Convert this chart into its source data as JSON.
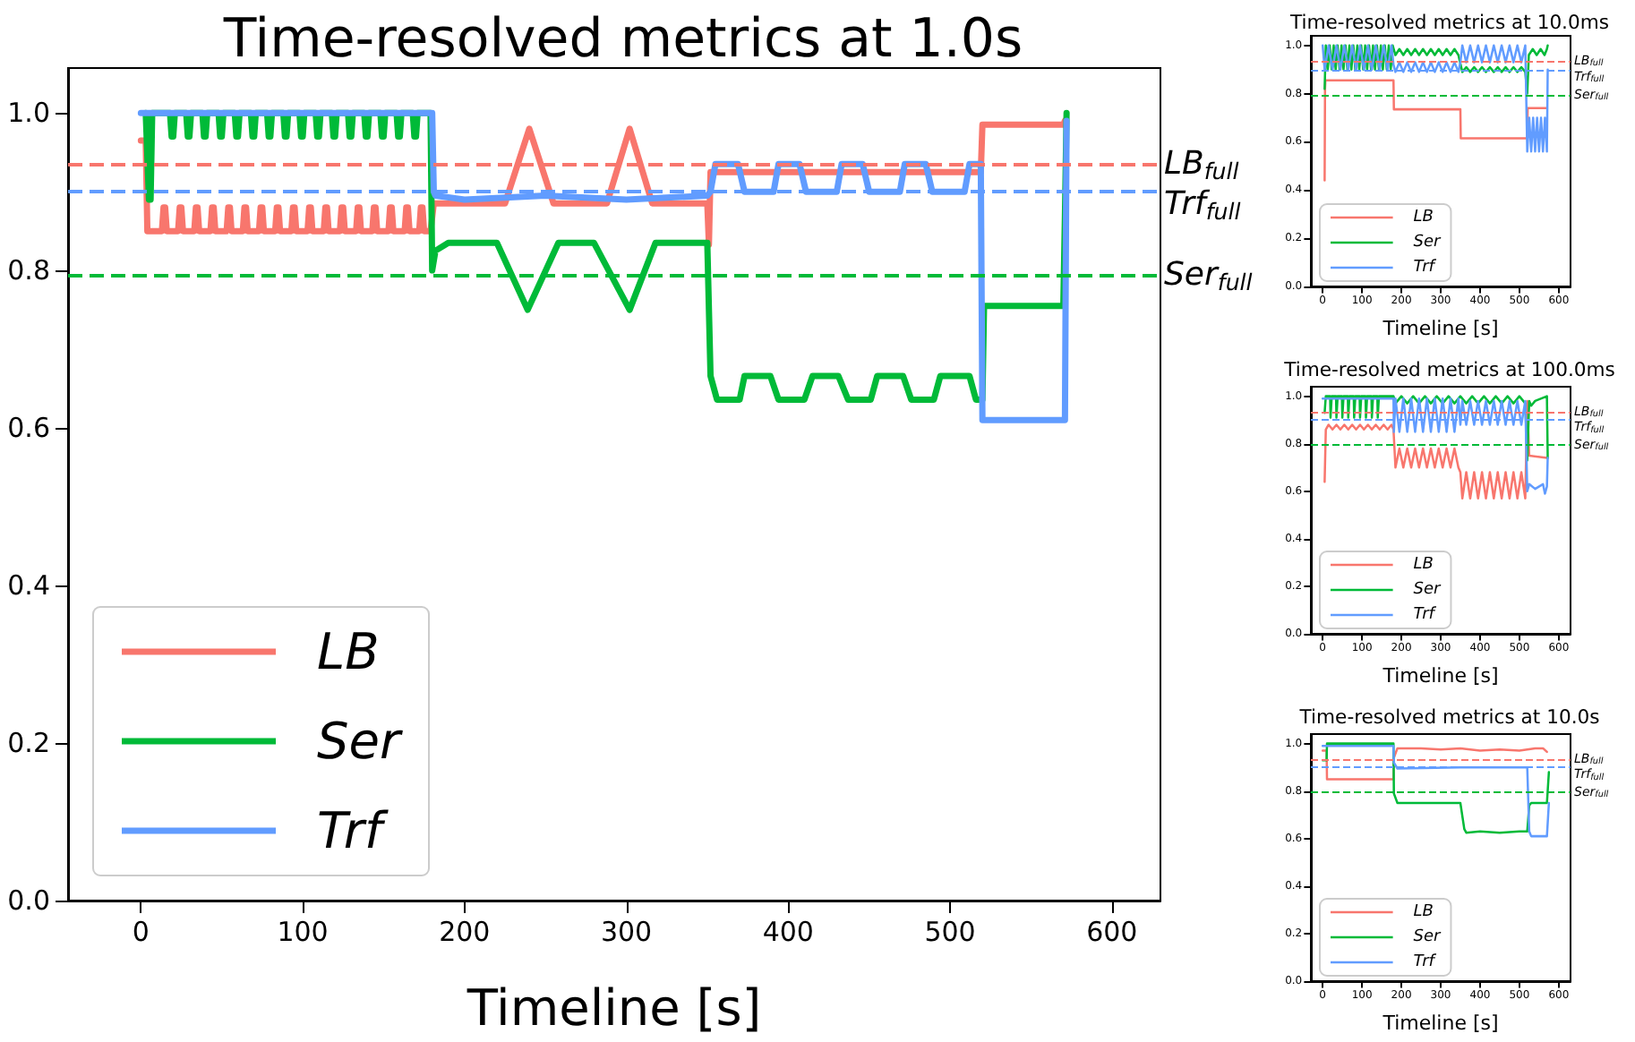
{
  "chart_data": [
    {
      "type": "line",
      "title": "Time-resolved metrics at 1.0s",
      "xlabel": "Timeline [s]",
      "xlim": [
        -45,
        630
      ],
      "ylim": [
        0,
        1.057
      ],
      "xticks": [
        0,
        100,
        200,
        300,
        400,
        500,
        600
      ],
      "yticks": [
        {
          "value": 0,
          "label": "0.0"
        },
        {
          "value": 0.2,
          "label": "0.2"
        },
        {
          "value": 0.4,
          "label": "0.4"
        },
        {
          "value": 0.6,
          "label": "0.6"
        },
        {
          "value": 0.8,
          "label": "0.8"
        },
        {
          "value": 1.0,
          "label": "1.0"
        }
      ],
      "legend": "bottom left",
      "series": [
        {
          "name": "LB",
          "color": "#f8766d",
          "x": [
            0,
            3,
            4,
            13,
            14,
            15,
            16,
            23,
            24,
            25,
            26,
            33,
            34,
            35,
            36,
            43,
            44,
            45,
            46,
            53,
            54,
            55,
            56,
            63,
            64,
            65,
            66,
            73,
            74,
            75,
            76,
            83,
            84,
            85,
            86,
            93,
            94,
            95,
            96,
            103,
            104,
            105,
            106,
            113,
            114,
            115,
            116,
            123,
            124,
            125,
            126,
            133,
            134,
            135,
            136,
            143,
            144,
            145,
            146,
            153,
            154,
            155,
            156,
            163,
            164,
            165,
            166,
            172,
            173,
            174,
            175,
            179,
            181,
            225,
            240,
            255,
            288,
            302,
            316,
            350,
            351,
            352,
            400,
            450,
            519,
            520,
            570,
            571
          ],
          "values": [
            0.965,
            0.965,
            0.85,
            0.85,
            0.88,
            0.88,
            0.85,
            0.85,
            0.88,
            0.88,
            0.85,
            0.85,
            0.88,
            0.88,
            0.85,
            0.85,
            0.88,
            0.88,
            0.85,
            0.85,
            0.88,
            0.88,
            0.85,
            0.85,
            0.88,
            0.88,
            0.85,
            0.85,
            0.88,
            0.88,
            0.85,
            0.85,
            0.88,
            0.88,
            0.85,
            0.85,
            0.88,
            0.88,
            0.85,
            0.85,
            0.88,
            0.88,
            0.85,
            0.85,
            0.88,
            0.88,
            0.85,
            0.85,
            0.88,
            0.88,
            0.85,
            0.85,
            0.88,
            0.88,
            0.85,
            0.85,
            0.88,
            0.88,
            0.85,
            0.85,
            0.88,
            0.88,
            0.85,
            0.85,
            0.88,
            0.88,
            0.85,
            0.85,
            0.88,
            0.88,
            0.85,
            0.85,
            0.885,
            0.885,
            0.98,
            0.885,
            0.885,
            0.98,
            0.885,
            0.885,
            0.833,
            0.925,
            0.925,
            0.925,
            0.925,
            0.985,
            0.985,
            0.99
          ]
        },
        {
          "name": "Ser",
          "color": "#00ba38",
          "x": [
            3,
            5,
            6,
            7,
            18,
            19,
            20,
            21,
            28,
            29,
            30,
            31,
            38,
            39,
            40,
            41,
            48,
            49,
            50,
            51,
            58,
            59,
            60,
            61,
            68,
            69,
            70,
            71,
            78,
            79,
            80,
            81,
            88,
            89,
            90,
            91,
            98,
            99,
            100,
            101,
            108,
            109,
            110,
            111,
            118,
            119,
            120,
            121,
            128,
            129,
            130,
            131,
            138,
            139,
            140,
            141,
            148,
            149,
            150,
            151,
            158,
            159,
            160,
            161,
            168,
            169,
            170,
            171,
            179,
            180,
            182,
            190,
            220,
            239,
            258,
            280,
            302,
            318,
            350,
            352,
            356,
            370,
            373,
            389,
            394,
            410,
            415,
            431,
            437,
            451,
            455,
            471,
            476,
            490,
            494,
            512,
            516,
            520,
            521,
            570,
            571,
            572
          ],
          "values": [
            1.0,
            0.89,
            0.89,
            1.0,
            1.0,
            0.97,
            0.97,
            1.0,
            1.0,
            0.97,
            0.97,
            1.0,
            1.0,
            0.97,
            0.97,
            1.0,
            1.0,
            0.97,
            0.97,
            1.0,
            1.0,
            0.97,
            0.97,
            1.0,
            1.0,
            0.97,
            0.97,
            1.0,
            1.0,
            0.97,
            0.97,
            1.0,
            1.0,
            0.97,
            0.97,
            1.0,
            1.0,
            0.97,
            0.97,
            1.0,
            1.0,
            0.97,
            0.97,
            1.0,
            1.0,
            0.97,
            0.97,
            1.0,
            1.0,
            0.97,
            0.97,
            1.0,
            1.0,
            0.97,
            0.97,
            1.0,
            1.0,
            0.97,
            0.97,
            1.0,
            1.0,
            0.97,
            0.97,
            1.0,
            1.0,
            0.97,
            0.97,
            1.0,
            1.0,
            0.8,
            0.825,
            0.835,
            0.835,
            0.75,
            0.835,
            0.835,
            0.75,
            0.835,
            0.835,
            0.666,
            0.636,
            0.636,
            0.666,
            0.666,
            0.636,
            0.636,
            0.666,
            0.666,
            0.636,
            0.636,
            0.666,
            0.666,
            0.636,
            0.636,
            0.666,
            0.666,
            0.636,
            0.636,
            0.755,
            0.755,
            0.87,
            1.0
          ]
        },
        {
          "name": "Trf",
          "color": "#619cff",
          "x": [
            0,
            180,
            181,
            182,
            200,
            250,
            300,
            350,
            352,
            355,
            369,
            373,
            391,
            394,
            407,
            411,
            430,
            433,
            446,
            450,
            469,
            472,
            485,
            489,
            509,
            512,
            519,
            520,
            571,
            572
          ],
          "values": [
            1.0,
            1.0,
            0.9,
            0.895,
            0.89,
            0.895,
            0.89,
            0.895,
            0.9,
            0.935,
            0.935,
            0.9,
            0.9,
            0.935,
            0.935,
            0.9,
            0.9,
            0.935,
            0.935,
            0.9,
            0.9,
            0.935,
            0.935,
            0.9,
            0.9,
            0.935,
            0.935,
            0.61,
            0.61,
            0.99
          ]
        }
      ],
      "ref_lines": [
        {
          "axis": "y",
          "value": 0.935,
          "label": "LB$_{full}$",
          "color": "#f8766d",
          "line_style": "dashed"
        },
        {
          "axis": "y",
          "value": 0.9,
          "label": "Trf$_{full}$",
          "color": "#619cff",
          "line_style": "dashed"
        },
        {
          "axis": "y",
          "value": 0.795,
          "label": "Ser$_{full}$",
          "color": "#00ba38",
          "line_style": "dashed"
        }
      ]
    },
    {
      "type": "line",
      "title": "Time-resolved metrics at 10.0ms",
      "xlabel": "Timeline [s]",
      "xlim": [
        -30,
        630
      ],
      "ylim": [
        0,
        1.04
      ],
      "xticks": [
        0,
        100,
        200,
        300,
        400,
        500,
        600
      ],
      "yticks": [
        {
          "value": 0,
          "label": "0.0"
        },
        {
          "value": 0.2,
          "label": "0.2"
        },
        {
          "value": 0.4,
          "label": "0.4"
        },
        {
          "value": 0.6,
          "label": "0.6"
        },
        {
          "value": 0.8,
          "label": "0.8"
        },
        {
          "value": 1.0,
          "label": "1.0"
        }
      ],
      "legend": "bottom left",
      "series": [
        {
          "name": "LB",
          "color": "#f8766d",
          "x": [
            5,
            6,
            7,
            180,
            181,
            350,
            351,
            520,
            521,
            570
          ],
          "values": [
            0.44,
            0.82,
            0.855,
            0.855,
            0.735,
            0.735,
            0.615,
            0.615,
            0.74,
            0.74
          ]
        },
        {
          "name": "Ser",
          "color": "#00ba38",
          "x": [
            5,
            8,
            13,
            18,
            23,
            28,
            33,
            38,
            43,
            48,
            53,
            58,
            63,
            68,
            73,
            78,
            83,
            88,
            93,
            98,
            103,
            108,
            113,
            118,
            123,
            128,
            133,
            138,
            143,
            148,
            153,
            158,
            163,
            168,
            173,
            178,
            185,
            195,
            205,
            215,
            225,
            235,
            245,
            255,
            265,
            275,
            285,
            295,
            305,
            315,
            325,
            335,
            345,
            355,
            365,
            375,
            385,
            395,
            405,
            415,
            425,
            435,
            445,
            455,
            465,
            475,
            485,
            495,
            505,
            515,
            520,
            524,
            534,
            544,
            554,
            564,
            570,
            572
          ],
          "values": [
            0.82,
            1.0,
            0.9,
            1.0,
            0.9,
            1.0,
            0.9,
            1.0,
            0.9,
            1.0,
            0.9,
            1.0,
            0.9,
            1.0,
            0.9,
            1.0,
            0.9,
            1.0,
            0.9,
            1.0,
            0.9,
            1.0,
            0.9,
            1.0,
            0.9,
            1.0,
            0.9,
            1.0,
            0.9,
            1.0,
            0.9,
            1.0,
            0.9,
            1.0,
            0.9,
            1.0,
            0.96,
            0.985,
            0.96,
            0.985,
            0.96,
            0.985,
            0.96,
            0.985,
            0.96,
            0.985,
            0.96,
            0.985,
            0.96,
            0.985,
            0.96,
            0.985,
            0.96,
            0.89,
            0.91,
            0.89,
            0.91,
            0.89,
            0.91,
            0.89,
            0.91,
            0.89,
            0.91,
            0.89,
            0.91,
            0.89,
            0.91,
            0.89,
            0.91,
            0.89,
            0.8,
            0.96,
            0.985,
            0.96,
            0.985,
            0.96,
            0.985,
            1.0
          ]
        },
        {
          "name": "Trf",
          "color": "#619cff",
          "x": [
            0,
            5,
            15,
            25,
            35,
            45,
            55,
            65,
            75,
            85,
            95,
            105,
            115,
            125,
            135,
            145,
            155,
            165,
            175,
            180,
            185,
            195,
            205,
            215,
            225,
            235,
            245,
            255,
            265,
            275,
            285,
            295,
            305,
            315,
            325,
            335,
            345,
            350,
            355,
            365,
            375,
            385,
            395,
            405,
            415,
            425,
            435,
            445,
            455,
            465,
            475,
            485,
            495,
            505,
            515,
            520,
            525,
            530,
            535,
            540,
            545,
            550,
            555,
            560,
            565,
            570,
            572
          ],
          "values": [
            1.0,
            0.9,
            1.0,
            0.9,
            1.0,
            0.9,
            1.0,
            0.9,
            1.0,
            0.9,
            1.0,
            0.9,
            1.0,
            0.9,
            1.0,
            0.9,
            1.0,
            0.9,
            1.0,
            0.92,
            0.89,
            0.93,
            0.89,
            0.93,
            0.89,
            0.93,
            0.89,
            0.93,
            0.89,
            0.93,
            0.89,
            0.93,
            0.89,
            0.93,
            0.89,
            0.93,
            0.89,
            0.93,
            1.0,
            0.93,
            1.0,
            0.93,
            1.0,
            0.93,
            1.0,
            0.93,
            1.0,
            0.93,
            1.0,
            0.93,
            1.0,
            0.93,
            1.0,
            0.93,
            1.0,
            0.56,
            0.7,
            0.56,
            0.7,
            0.56,
            0.7,
            0.56,
            0.7,
            0.56,
            0.7,
            0.56,
            0.9
          ]
        }
      ],
      "ref_lines": [
        {
          "axis": "y",
          "value": 0.935,
          "label": "LB$_{full}$",
          "color": "#f8766d",
          "line_style": "dashed"
        },
        {
          "axis": "y",
          "value": 0.9,
          "label": "Trf$_{full}$",
          "color": "#619cff",
          "line_style": "dashed"
        },
        {
          "axis": "y",
          "value": 0.795,
          "label": "Ser$_{full}$",
          "color": "#00ba38",
          "line_style": "dashed"
        }
      ]
    },
    {
      "type": "line",
      "title": "Time-resolved metrics at 100.0ms",
      "xlabel": "Timeline [s]",
      "xlim": [
        -30,
        630
      ],
      "ylim": [
        0,
        1.04
      ],
      "xticks": [
        0,
        100,
        200,
        300,
        400,
        500,
        600
      ],
      "yticks": [
        {
          "value": 0,
          "label": "0.0"
        },
        {
          "value": 0.2,
          "label": "0.2"
        },
        {
          "value": 0.4,
          "label": "0.4"
        },
        {
          "value": 0.6,
          "label": "0.6"
        },
        {
          "value": 0.8,
          "label": "0.8"
        },
        {
          "value": 1.0,
          "label": "1.0"
        }
      ],
      "legend": "bottom left",
      "series": [
        {
          "name": "LB",
          "color": "#f8766d",
          "x": [
            5,
            8,
            15,
            25,
            35,
            45,
            55,
            65,
            75,
            85,
            95,
            105,
            115,
            125,
            135,
            145,
            155,
            165,
            175,
            180,
            185,
            195,
            205,
            215,
            225,
            235,
            245,
            255,
            265,
            275,
            285,
            295,
            305,
            315,
            325,
            335,
            345,
            350,
            355,
            365,
            375,
            385,
            395,
            405,
            415,
            425,
            435,
            445,
            455,
            465,
            475,
            485,
            495,
            505,
            515,
            520,
            525,
            570,
            572
          ],
          "values": [
            0.64,
            0.86,
            0.88,
            0.86,
            0.88,
            0.86,
            0.88,
            0.86,
            0.88,
            0.86,
            0.88,
            0.86,
            0.88,
            0.86,
            0.88,
            0.86,
            0.88,
            0.86,
            0.88,
            0.86,
            0.7,
            0.78,
            0.7,
            0.78,
            0.7,
            0.78,
            0.7,
            0.78,
            0.7,
            0.78,
            0.7,
            0.78,
            0.7,
            0.78,
            0.7,
            0.78,
            0.7,
            0.68,
            0.57,
            0.68,
            0.57,
            0.68,
            0.57,
            0.68,
            0.57,
            0.68,
            0.57,
            0.68,
            0.57,
            0.68,
            0.57,
            0.68,
            0.57,
            0.68,
            0.57,
            0.98,
            0.75,
            0.74,
            0.74
          ]
        },
        {
          "name": "Ser",
          "color": "#00ba38",
          "x": [
            5,
            8,
            19,
            20,
            22,
            23,
            34,
            35,
            37,
            38,
            49,
            50,
            52,
            53,
            64,
            65,
            67,
            68,
            79,
            80,
            82,
            83,
            94,
            95,
            97,
            98,
            109,
            110,
            112,
            113,
            124,
            125,
            127,
            128,
            139,
            140,
            142,
            143,
            180,
            185,
            200,
            215,
            230,
            245,
            260,
            275,
            290,
            305,
            320,
            335,
            350,
            365,
            380,
            395,
            410,
            425,
            440,
            455,
            470,
            485,
            500,
            515,
            520,
            525,
            530,
            540,
            570,
            572
          ],
          "values": [
            0.93,
            1.0,
            1.0,
            0.91,
            0.91,
            1.0,
            1.0,
            0.91,
            0.91,
            1.0,
            1.0,
            0.91,
            0.91,
            1.0,
            1.0,
            0.91,
            0.91,
            1.0,
            1.0,
            0.91,
            0.91,
            1.0,
            1.0,
            0.91,
            0.91,
            1.0,
            1.0,
            0.91,
            0.91,
            1.0,
            1.0,
            0.91,
            0.91,
            1.0,
            1.0,
            0.91,
            0.91,
            1.0,
            1.0,
            0.97,
            1.0,
            0.97,
            1.0,
            0.97,
            1.0,
            0.97,
            1.0,
            0.97,
            1.0,
            0.97,
            1.0,
            0.97,
            1.0,
            0.97,
            1.0,
            0.97,
            1.0,
            0.97,
            1.0,
            0.97,
            1.0,
            0.97,
            0.73,
            0.98,
            0.96,
            0.98,
            1.0,
            0.74
          ]
        },
        {
          "name": "Trf",
          "color": "#619cff",
          "x": [
            0,
            180,
            181,
            185,
            195,
            205,
            215,
            225,
            235,
            245,
            255,
            265,
            275,
            285,
            295,
            305,
            315,
            325,
            335,
            345,
            350,
            355,
            365,
            375,
            385,
            395,
            405,
            415,
            425,
            435,
            445,
            455,
            465,
            475,
            485,
            495,
            505,
            515,
            520,
            525,
            540,
            560,
            565,
            570,
            572
          ],
          "values": [
            0.99,
            0.99,
            0.85,
            0.99,
            0.85,
            0.99,
            0.85,
            0.99,
            0.85,
            0.99,
            0.85,
            0.99,
            0.85,
            0.99,
            0.85,
            0.99,
            0.85,
            0.99,
            0.85,
            0.99,
            0.88,
            0.98,
            0.88,
            0.98,
            0.88,
            0.98,
            0.88,
            0.98,
            0.88,
            0.98,
            0.88,
            0.98,
            0.88,
            0.98,
            0.88,
            0.98,
            0.88,
            0.98,
            0.6,
            0.63,
            0.61,
            0.63,
            0.59,
            0.62,
            0.74
          ]
        }
      ],
      "ref_lines": [
        {
          "axis": "y",
          "value": 0.935,
          "label": "LB$_{full}$",
          "color": "#f8766d",
          "line_style": "dashed"
        },
        {
          "axis": "y",
          "value": 0.9,
          "label": "Trf$_{full}$",
          "color": "#619cff",
          "line_style": "dashed"
        },
        {
          "axis": "y",
          "value": 0.795,
          "label": "Ser$_{full}$",
          "color": "#00ba38",
          "line_style": "dashed"
        }
      ]
    },
    {
      "type": "line",
      "title": "Time-resolved metrics at 10.0s",
      "xlabel": "Timeline [s]",
      "xlim": [
        -30,
        630
      ],
      "ylim": [
        0,
        1.04
      ],
      "xticks": [
        0,
        100,
        200,
        300,
        400,
        500,
        600
      ],
      "yticks": [
        {
          "value": 0,
          "label": "0.0"
        },
        {
          "value": 0.2,
          "label": "0.2"
        },
        {
          "value": 0.4,
          "label": "0.4"
        },
        {
          "value": 0.6,
          "label": "0.6"
        },
        {
          "value": 0.8,
          "label": "0.8"
        },
        {
          "value": 1.0,
          "label": "1.0"
        }
      ],
      "legend": "bottom left",
      "series": [
        {
          "name": "LB",
          "color": "#f8766d",
          "x": [
            0,
            10,
            11,
            180,
            181,
            190,
            250,
            300,
            350,
            400,
            450,
            500,
            520,
            540,
            560,
            570
          ],
          "values": [
            0.97,
            0.97,
            0.85,
            0.85,
            0.94,
            0.98,
            0.98,
            0.975,
            0.98,
            0.97,
            0.975,
            0.97,
            0.975,
            0.98,
            0.98,
            0.965
          ]
        },
        {
          "name": "Ser",
          "color": "#00ba38",
          "x": [
            0,
            10,
            11,
            180,
            181,
            190,
            350,
            360,
            365,
            400,
            450,
            500,
            520,
            525,
            530,
            570,
            575
          ],
          "values": [
            0.93,
            0.93,
            1.0,
            1.0,
            0.79,
            0.75,
            0.75,
            0.64,
            0.625,
            0.63,
            0.625,
            0.63,
            0.63,
            0.74,
            0.75,
            0.75,
            0.88
          ]
        },
        {
          "name": "Trf",
          "color": "#619cff",
          "x": [
            0,
            10,
            180,
            181,
            190,
            350,
            400,
            520,
            525,
            530,
            570,
            575
          ],
          "values": [
            0.99,
            0.99,
            0.99,
            0.92,
            0.895,
            0.9,
            0.9,
            0.9,
            0.63,
            0.61,
            0.61,
            0.75
          ]
        }
      ],
      "ref_lines": [
        {
          "axis": "y",
          "value": 0.935,
          "label": "LB$_{full}$",
          "color": "#f8766d",
          "line_style": "dashed"
        },
        {
          "axis": "y",
          "value": 0.9,
          "label": "Trf$_{full}$",
          "color": "#619cff",
          "line_style": "dashed"
        },
        {
          "axis": "y",
          "value": 0.795,
          "label": "Ser$_{full}$",
          "color": "#00ba38",
          "line_style": "dashed"
        }
      ]
    }
  ]
}
